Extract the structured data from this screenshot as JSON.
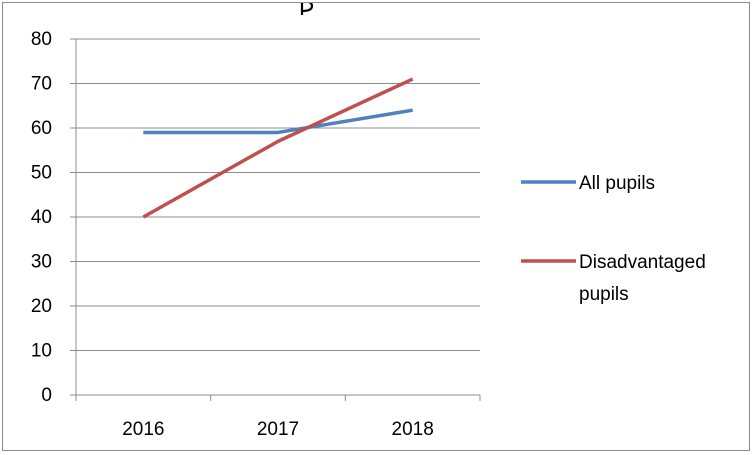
{
  "chart_data": {
    "type": "line",
    "title": "",
    "xlabel": "",
    "ylabel": "",
    "categories": [
      "2016",
      "2017",
      "2018"
    ],
    "ylim": [
      0,
      80
    ],
    "yticks": [
      0,
      10,
      20,
      30,
      40,
      50,
      60,
      70,
      80
    ],
    "grid": "horizontal",
    "legend_position": "right",
    "series": [
      {
        "name": "All pupils",
        "values": [
          59,
          59,
          64
        ],
        "color": "#4F81BD"
      },
      {
        "name": "Disadvantaged pupils",
        "values": [
          40,
          57,
          71
        ],
        "color": "#C0504D"
      }
    ]
  }
}
